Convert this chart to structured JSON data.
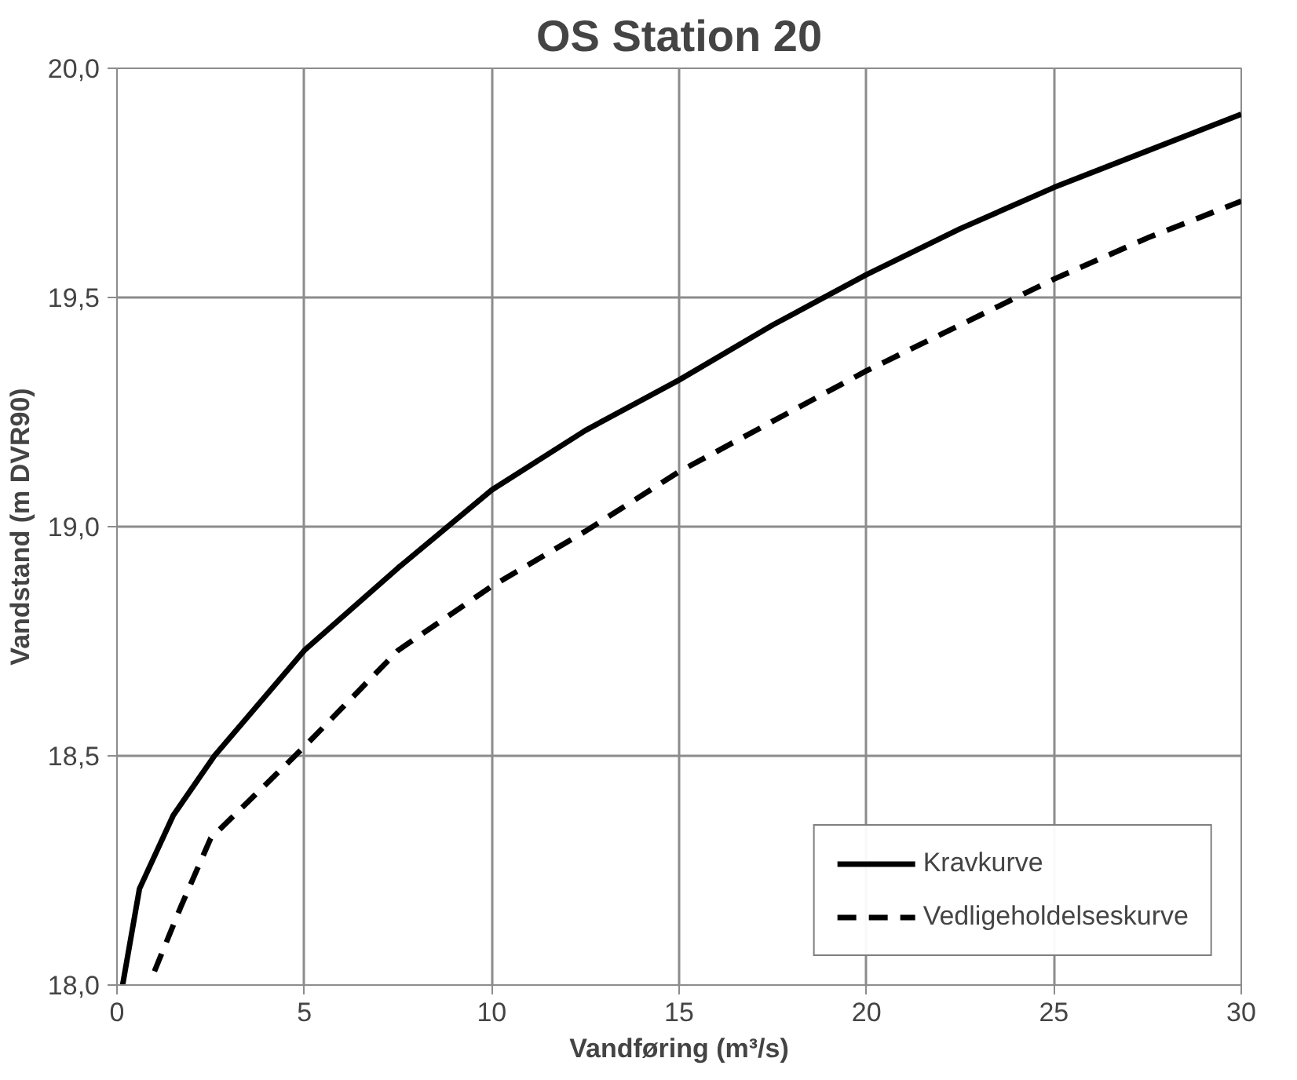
{
  "chart_data": {
    "type": "line",
    "title": "OS Station 20",
    "xlabel": "Vandføring (m³/s)",
    "ylabel": "Vandstand (m DVR90)",
    "xlim": [
      0,
      30
    ],
    "ylim": [
      18.0,
      20.0
    ],
    "xticks": [
      0,
      5,
      10,
      15,
      20,
      25,
      30
    ],
    "yticks": [
      {
        "value": 18.0,
        "label": "18,0"
      },
      {
        "value": 18.5,
        "label": "18,5"
      },
      {
        "value": 19.0,
        "label": "19,0"
      },
      {
        "value": 19.5,
        "label": "19,5"
      },
      {
        "value": 20.0,
        "label": "20,0"
      }
    ],
    "grid": true,
    "legend": "bottom right",
    "marker": "none",
    "series": [
      {
        "name": "Kravkurve",
        "color": "#000000",
        "line_style": "solid",
        "x": [
          0.15,
          0.6,
          1.5,
          2.6,
          5,
          7.5,
          10,
          12.5,
          15,
          17.5,
          20,
          22.5,
          25,
          27.5,
          30
        ],
        "values": [
          18.0,
          18.21,
          18.37,
          18.5,
          18.73,
          18.91,
          19.08,
          19.21,
          19.32,
          19.44,
          19.55,
          19.65,
          19.74,
          19.82,
          19.9
        ]
      },
      {
        "name": "Vedligeholdelseskurve",
        "color": "#000000",
        "line_style": "dashed",
        "x": [
          1.0,
          1.7,
          2.5,
          5,
          7.5,
          10,
          12.5,
          15,
          17.5,
          20,
          22.5,
          25,
          27.5,
          30
        ],
        "values": [
          18.03,
          18.17,
          18.32,
          18.52,
          18.73,
          18.87,
          18.99,
          19.12,
          19.23,
          19.34,
          19.44,
          19.54,
          19.63,
          19.71
        ]
      }
    ]
  }
}
